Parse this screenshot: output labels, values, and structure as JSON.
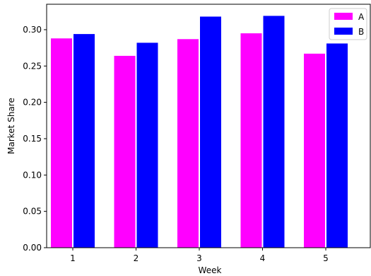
{
  "chart_data": {
    "type": "bar",
    "xlabel": "Week",
    "ylabel": "Market Share",
    "categories": [
      "1",
      "2",
      "3",
      "4",
      "5"
    ],
    "ylim": [
      0,
      0.335
    ],
    "yticks": [
      "0.00",
      "0.05",
      "0.10",
      "0.15",
      "0.20",
      "0.25",
      "0.30"
    ],
    "grid": false,
    "legend_position": "top-right",
    "series": [
      {
        "name": "A",
        "color": "#ff00ff",
        "values": [
          0.288,
          0.264,
          0.287,
          0.295,
          0.267
        ]
      },
      {
        "name": "B",
        "color": "#0000ff",
        "values": [
          0.294,
          0.282,
          0.318,
          0.319,
          0.281
        ]
      }
    ]
  }
}
